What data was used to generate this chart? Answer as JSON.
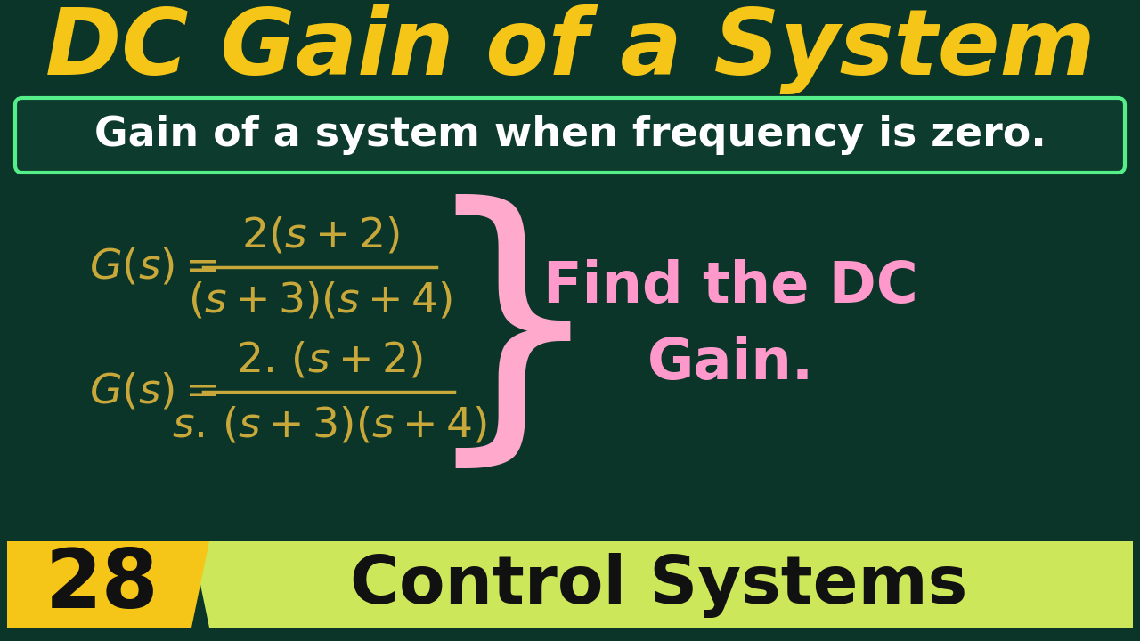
{
  "bg_color": "#0a3528",
  "title": "DC Gain of a System",
  "title_color": "#f5c518",
  "subtitle": "Gain of a system when frequency is zero.",
  "subtitle_color": "#ffffff",
  "subtitle_box_color": "#0d3b2e",
  "subtitle_box_border": "#55ee88",
  "eq_color": "#c8a83a",
  "find_text": "Find the DC\nGain.",
  "find_color": "#ff99cc",
  "brace_color": "#ffaacc",
  "badge_number": "28",
  "badge_bg": "#f5c518",
  "badge_text_color": "#111111",
  "banner_text": "Control Systems",
  "banner_bg": "#cce85a",
  "banner_text_color": "#111111"
}
